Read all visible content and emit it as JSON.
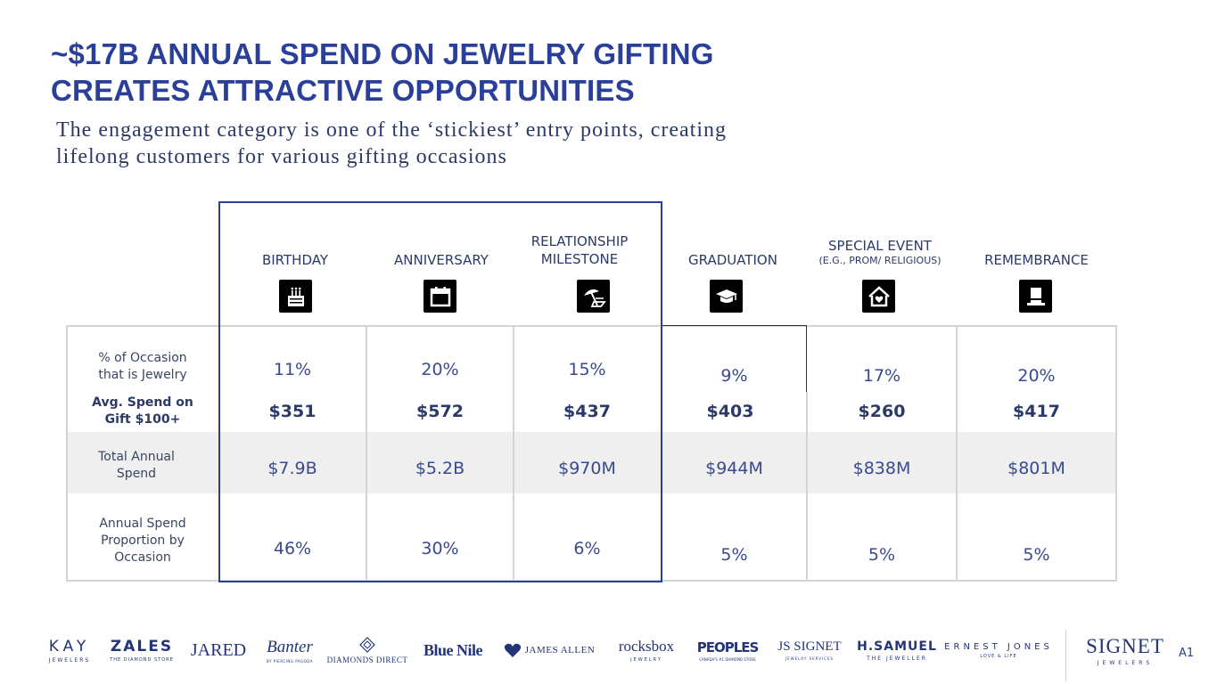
{
  "title": {
    "line1": "~$17B ANNUAL SPEND ON JEWELRY GIFTING",
    "line2": "CREATES ATTRACTIVE OPPORTUNITIES"
  },
  "subtitle": {
    "line1": "The engagement category is one of the ‘stickiest’ entry points, creating",
    "line2": "lifelong customers for various gifting occasions"
  },
  "occasions": [
    {
      "label": "BIRTHDAY",
      "sub": "",
      "icon": "birthday-cake-icon"
    },
    {
      "label": "ANNIVERSARY",
      "sub": "",
      "icon": "calendar-icon"
    },
    {
      "label": "RELATIONSHIP MILESTONE",
      "line1": "RELATIONSHIP",
      "line2": "MILESTONE",
      "sub": "",
      "icon": "beach-umbrella-icon"
    },
    {
      "label": "GRADUATION",
      "sub": "",
      "icon": "graduation-cap-icon"
    },
    {
      "label": "SPECIAL EVENT",
      "sub": "(E.G., PROM/ RELIGIOUS)",
      "icon": "house-heart-icon"
    },
    {
      "label": "REMEMBRANCE",
      "sub": "",
      "icon": "top-hat-icon"
    }
  ],
  "rows": {
    "pct_jewelry": {
      "label_line1": "% of Occasion",
      "label_line2": "that is Jewelry",
      "values": [
        "11%",
        "20%",
        "15%",
        "9%",
        "17%",
        "20%"
      ]
    },
    "avg_spend": {
      "label_line1": "Avg. Spend on",
      "label_line2": "Gift $100+",
      "values": [
        "$351",
        "$572",
        "$437",
        "$403",
        "$260",
        "$417"
      ]
    },
    "total_spend": {
      "label_line1": "Total Annual",
      "label_line2": "Spend",
      "values": [
        "$7.9B",
        "$5.2B",
        "$970M",
        "$944M",
        "$838M",
        "$801M"
      ]
    },
    "proportion": {
      "label_line1": "Annual Spend",
      "label_line2": "Proportion by",
      "label_line3": "Occasion",
      "values": [
        "46%",
        "30%",
        "6%",
        "5%",
        "5%",
        "5%"
      ]
    }
  },
  "logos": [
    {
      "name": "KAY",
      "sub": "JEWELERS"
    },
    {
      "name": "ZALES",
      "sub": "THE DIAMOND STORE"
    },
    {
      "name": "JARED",
      "sub": ""
    },
    {
      "name": "Banter",
      "sub": "BY PIERCING PAGODA"
    },
    {
      "name": "DIAMONDS DIRECT",
      "sub": ""
    },
    {
      "name": "Blue Nile",
      "sub": ""
    },
    {
      "name": "JAMES ALLEN",
      "sub": ""
    },
    {
      "name": "rocksbox",
      "sub": "JEWELRY"
    },
    {
      "name": "PEOPLES",
      "sub": "CANADA'S #1 DIAMOND STORE"
    },
    {
      "name": "JS SIGNET",
      "sub": "JEWELRY SERVICES"
    },
    {
      "name": "H.SAMUEL",
      "sub": "THE JEWELLER"
    },
    {
      "name": "ERNEST JONES",
      "sub": "LOVE & LIFE"
    },
    {
      "name": "SIGNET",
      "sub": "JEWELERS"
    }
  ],
  "page_number": "A1",
  "colors": {
    "brand": "#2a3f99",
    "text": "#2b3a67",
    "band": "#efefef"
  }
}
